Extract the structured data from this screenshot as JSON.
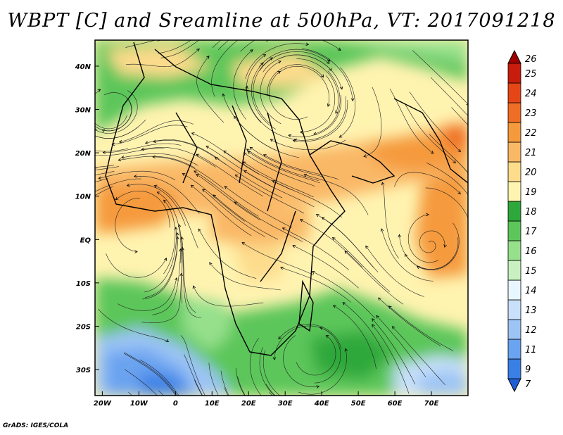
{
  "title": "WBPT [C] and Sreamline at 500hPa, VT: 2017091218",
  "footer": "GrADS: IGES/COLA",
  "map": {
    "lon_range": [
      -22,
      80
    ],
    "lat_range": [
      -36,
      46
    ],
    "lon_ticks": [
      {
        "value": -20,
        "label": "20W"
      },
      {
        "value": -10,
        "label": "10W"
      },
      {
        "value": 0,
        "label": "0"
      },
      {
        "value": 10,
        "label": "10E"
      },
      {
        "value": 20,
        "label": "20E"
      },
      {
        "value": 30,
        "label": "30E"
      },
      {
        "value": 40,
        "label": "40E"
      },
      {
        "value": 50,
        "label": "50E"
      },
      {
        "value": 60,
        "label": "60E"
      },
      {
        "value": 70,
        "label": "70E"
      }
    ],
    "lat_ticks": [
      {
        "value": 40,
        "label": "40N"
      },
      {
        "value": 30,
        "label": "30N"
      },
      {
        "value": 20,
        "label": "20N"
      },
      {
        "value": 10,
        "label": "10N"
      },
      {
        "value": 0,
        "label": "EQ"
      },
      {
        "value": -10,
        "label": "10S"
      },
      {
        "value": -20,
        "label": "20S"
      },
      {
        "value": -30,
        "label": "30S"
      }
    ]
  },
  "colorbar": {
    "labels": [
      "7",
      "9",
      "11",
      "12",
      "13",
      "14",
      "15",
      "16",
      "17",
      "18",
      "19",
      "20",
      "21",
      "22",
      "23",
      "24",
      "25",
      "26"
    ],
    "colors": [
      "#1f5fd6",
      "#3a7fe6",
      "#6aa3f0",
      "#9cc4f5",
      "#c8e0fa",
      "#e8f6ff",
      "#c8f0c0",
      "#96e08c",
      "#5cc65a",
      "#2ea83a",
      "#fff3b0",
      "#fddc8c",
      "#f9b866",
      "#f59a3c",
      "#ef6d24",
      "#e64616",
      "#c81c0c",
      "#a00000"
    ]
  }
}
